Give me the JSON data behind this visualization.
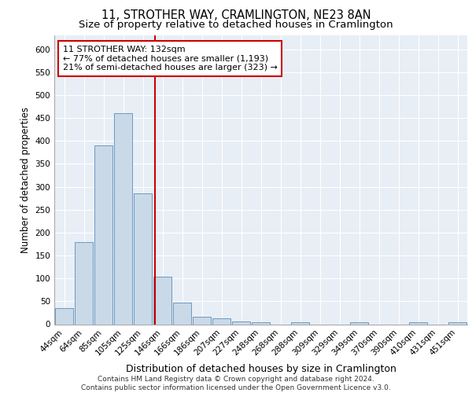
{
  "title": "11, STROTHER WAY, CRAMLINGTON, NE23 8AN",
  "subtitle": "Size of property relative to detached houses in Cramlington",
  "xlabel": "Distribution of detached houses by size in Cramlington",
  "ylabel": "Number of detached properties",
  "categories": [
    "44sqm",
    "64sqm",
    "85sqm",
    "105sqm",
    "125sqm",
    "146sqm",
    "166sqm",
    "186sqm",
    "207sqm",
    "227sqm",
    "248sqm",
    "268sqm",
    "288sqm",
    "309sqm",
    "329sqm",
    "349sqm",
    "370sqm",
    "390sqm",
    "410sqm",
    "431sqm",
    "451sqm"
  ],
  "values": [
    35,
    180,
    390,
    460,
    285,
    103,
    48,
    17,
    13,
    6,
    4,
    0,
    4,
    0,
    0,
    4,
    0,
    0,
    4,
    0,
    4
  ],
  "bar_color": "#c9d9e8",
  "bar_edge_color": "#5b8db8",
  "red_line_x": 4.62,
  "red_line_color": "#cc0000",
  "annotation_text": "11 STROTHER WAY: 132sqm\n← 77% of detached houses are smaller (1,193)\n21% of semi-detached houses are larger (323) →",
  "annotation_box_color": "#ffffff",
  "annotation_box_edge_color": "#cc0000",
  "ylim": [
    0,
    630
  ],
  "yticks": [
    0,
    50,
    100,
    150,
    200,
    250,
    300,
    350,
    400,
    450,
    500,
    550,
    600
  ],
  "background_color": "#e8eef5",
  "footer_text": "Contains HM Land Registry data © Crown copyright and database right 2024.\nContains public sector information licensed under the Open Government Licence v3.0.",
  "title_fontsize": 10.5,
  "subtitle_fontsize": 9.5,
  "xlabel_fontsize": 9,
  "ylabel_fontsize": 8.5,
  "tick_fontsize": 7.5,
  "annotation_fontsize": 8,
  "footer_fontsize": 6.5
}
